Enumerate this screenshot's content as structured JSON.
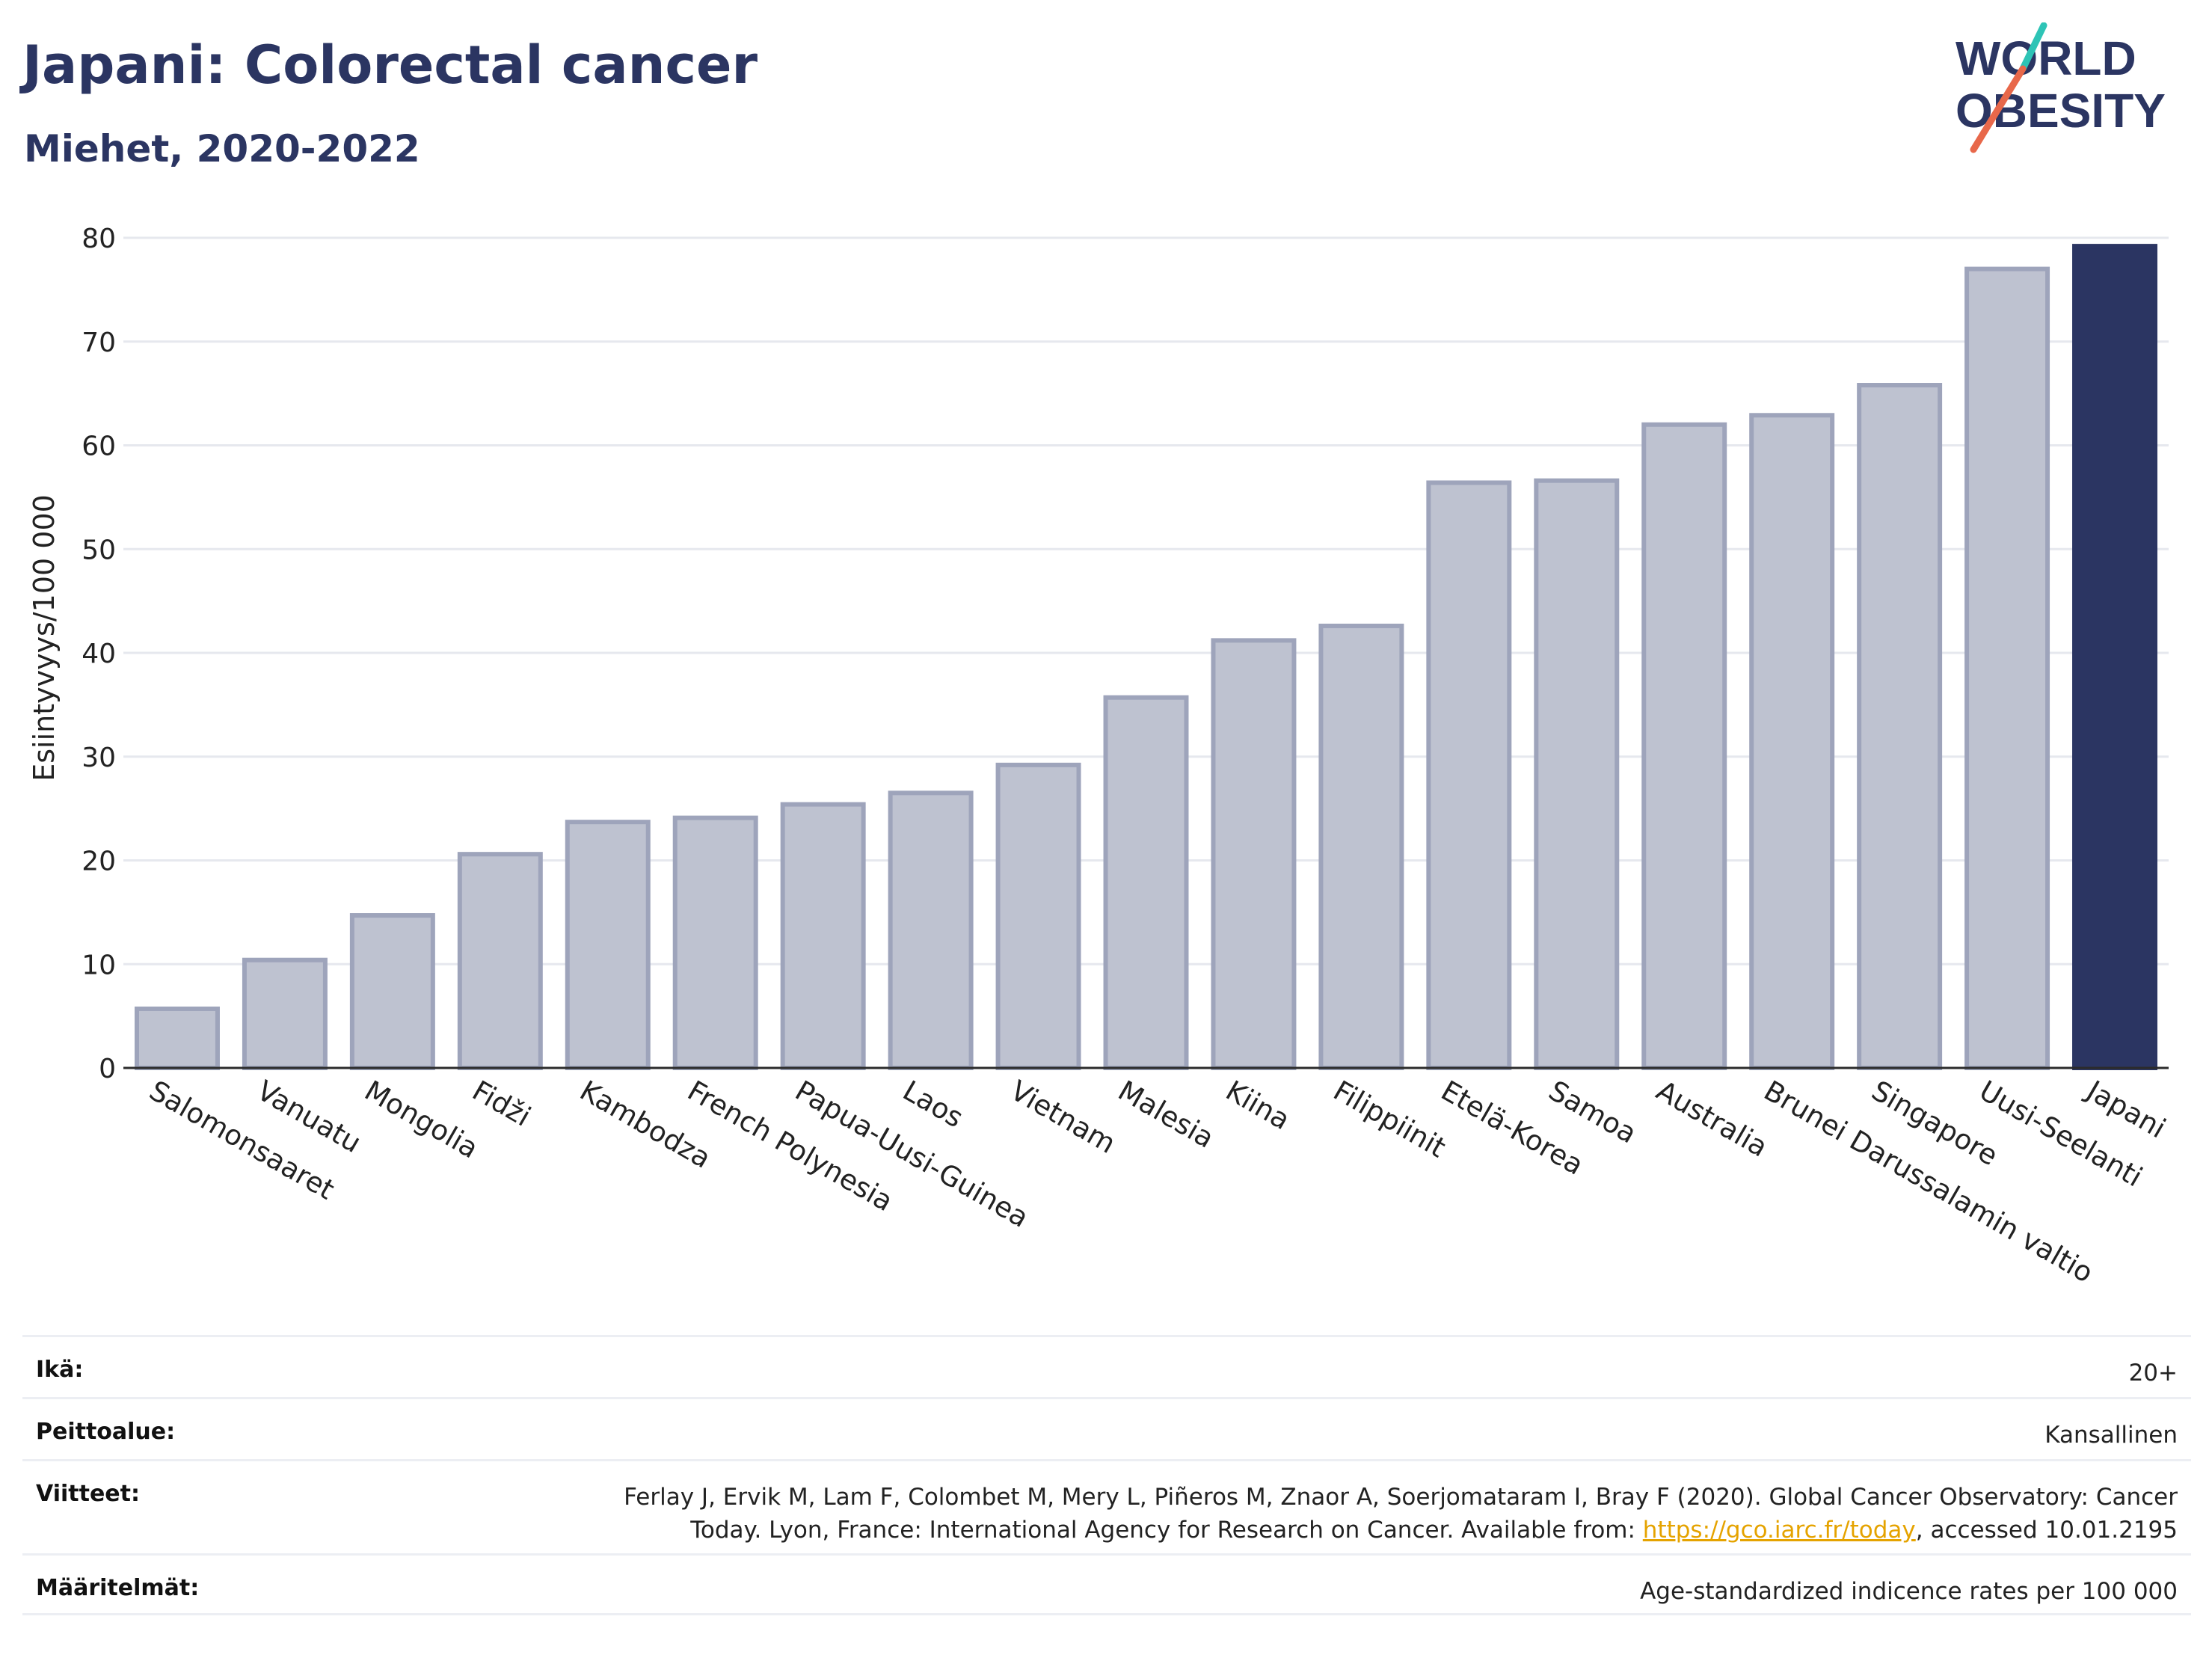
{
  "title": "Japani: Colorectal cancer",
  "subtitle": "Miehet, 2020-2022",
  "logo": {
    "line1": "WORLD",
    "line2": "OBESITY"
  },
  "colors": {
    "highlight": "#2b3562",
    "bar": "#bec2d0",
    "bar_border": "#9ea4bb",
    "grid": "#e6e8ee",
    "accent_teal": "#2ec4b6",
    "accent_red": "#e8684a"
  },
  "chart_data": {
    "type": "bar",
    "categories": [
      "Salomonsaaret",
      "Vanuatu",
      "Mongolia",
      "Fidži",
      "Kambodza",
      "French Polynesia",
      "Papua-Uusi-Guinea",
      "Laos",
      "Vietnam",
      "Malesia",
      "Kiina",
      "Filippiinit",
      "Etelä-Korea",
      "Samoa",
      "Australia",
      "Brunei Darussalamin valtio",
      "Singapore",
      "Uusi-Seelanti",
      "Japani"
    ],
    "values": [
      5.7,
      10.4,
      14.7,
      20.6,
      23.7,
      24.1,
      25.4,
      26.5,
      29.2,
      35.7,
      41.2,
      42.6,
      56.4,
      56.6,
      62.0,
      62.9,
      65.8,
      77.0,
      79.2
    ],
    "highlight": "Japani",
    "ylabel": "Esiintyvyys/100 000",
    "ylim": [
      0,
      80
    ],
    "yticks": [
      0,
      10,
      20,
      30,
      40,
      50,
      60,
      70,
      80
    ],
    "grid": true
  },
  "meta": {
    "age_label": "Ikä:",
    "age_value": "20+",
    "coverage_label": "Peittoalue:",
    "coverage_value": "Kansallinen",
    "refs_label": "Viitteet:",
    "refs_line1": "Ferlay J, Ervik M, Lam F, Colombet M, Mery L, Piñeros M, Znaor A, Soerjomataram I, Bray F (2020). Global Cancer Observatory: Cancer",
    "refs_line2_pre": "Today. Lyon, France: International Agency for Research on Cancer. Available from: ",
    "refs_link": "https://gco.iarc.fr/today",
    "refs_line2_post": ", accessed 10.01.2195",
    "defs_label": "Määritelmät:",
    "defs_value": "Age-standardized indicence rates per 100 000"
  }
}
